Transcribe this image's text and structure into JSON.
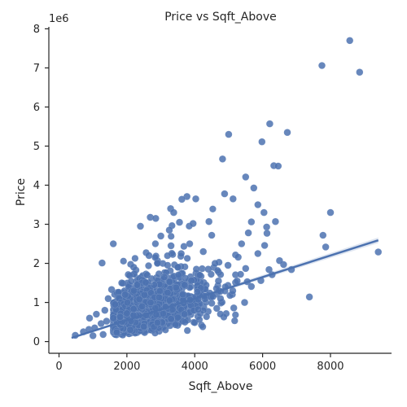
{
  "chart_data": {
    "type": "scatter",
    "title": "Price vs Sqft_Above",
    "xlabel": "Sqft_Above",
    "ylabel": "Price",
    "y_scale_label": "1e6",
    "xlim": [
      -300,
      9800
    ],
    "ylim": [
      -300000,
      8050000
    ],
    "x_ticks": [
      0,
      2000,
      4000,
      6000,
      8000
    ],
    "x_tick_labels": [
      "0",
      "2000",
      "4000",
      "6000",
      "8000"
    ],
    "y_ticks": [
      0,
      1000000,
      2000000,
      3000000,
      4000000,
      5000000,
      6000000,
      7000000,
      8000000
    ],
    "y_tick_labels": [
      "0",
      "1",
      "2",
      "3",
      "4",
      "5",
      "6",
      "7",
      "8"
    ],
    "grid": false,
    "point_color": "#4c72b0",
    "regression_line": {
      "x": [
        370,
        9410
      ],
      "y": [
        95000,
        2590000
      ],
      "color": "#4c72b0"
    },
    "series": [
      {
        "points": [
          [
            8570,
            7700000
          ],
          [
            7750,
            7060000
          ],
          [
            8860,
            6890000
          ],
          [
            6210,
            5570000
          ],
          [
            6730,
            5350000
          ],
          [
            5000,
            5300000
          ],
          [
            5980,
            5110000
          ],
          [
            4820,
            4670000
          ],
          [
            6330,
            4500000
          ],
          [
            6460,
            4490000
          ],
          [
            5500,
            4210000
          ],
          [
            5740,
            3930000
          ],
          [
            5860,
            3500000
          ],
          [
            4030,
            3650000
          ],
          [
            3770,
            3710000
          ],
          [
            4880,
            3780000
          ],
          [
            3620,
            3640000
          ],
          [
            3290,
            3400000
          ],
          [
            2690,
            3180000
          ],
          [
            3380,
            3300000
          ],
          [
            5130,
            3650000
          ],
          [
            5670,
            3060000
          ],
          [
            5580,
            2780000
          ],
          [
            5380,
            2500000
          ],
          [
            6040,
            3300000
          ],
          [
            6380,
            3070000
          ],
          [
            6120,
            2930000
          ],
          [
            6130,
            2770000
          ],
          [
            6060,
            2460000
          ],
          [
            7780,
            2720000
          ],
          [
            7860,
            2420000
          ],
          [
            8000,
            3300000
          ],
          [
            9410,
            2290000
          ],
          [
            6620,
            1970000
          ],
          [
            6850,
            1840000
          ],
          [
            6280,
            1710000
          ],
          [
            6190,
            1840000
          ],
          [
            5950,
            1560000
          ],
          [
            5500,
            1870000
          ],
          [
            5550,
            1530000
          ],
          [
            7380,
            1140000
          ],
          [
            5470,
            1000000
          ],
          [
            5150,
            860000
          ],
          [
            6500,
            2070000
          ],
          [
            5860,
            2250000
          ],
          [
            4420,
            3070000
          ],
          [
            3950,
            3020000
          ],
          [
            4500,
            2720000
          ],
          [
            2080,
            1690000
          ],
          [
            1550,
            1330000
          ],
          [
            1270,
            2010000
          ],
          [
            1600,
            2500000
          ],
          [
            2400,
            2950000
          ],
          [
            4980,
            1950000
          ],
          [
            5280,
            2160000
          ],
          [
            4300,
            1090000
          ],
          [
            5040,
            1180000
          ],
          [
            5670,
            1410000
          ],
          [
            4650,
            850000
          ],
          [
            4760,
            1100000
          ],
          [
            5120,
            1300000
          ],
          [
            480,
            160000
          ],
          [
            720,
            250000
          ],
          [
            880,
            310000
          ],
          [
            1050,
            350000
          ],
          [
            1240,
            460000
          ],
          [
            1400,
            520000
          ],
          [
            1600,
            600000
          ],
          [
            1800,
            630000
          ],
          [
            2000,
            720000
          ],
          [
            2200,
            830000
          ],
          [
            2450,
            900000
          ],
          [
            2700,
            1000000
          ],
          [
            2950,
            1130000
          ],
          [
            3200,
            1250000
          ],
          [
            3450,
            1380000
          ],
          [
            3700,
            1450000
          ],
          [
            3900,
            1560000
          ],
          [
            4150,
            1700000
          ],
          [
            4400,
            1850000
          ],
          [
            4600,
            2000000
          ],
          [
            3600,
            2250000
          ],
          [
            3300,
            2450000
          ],
          [
            2900,
            2000000
          ],
          [
            2600,
            1700000
          ],
          [
            2300,
            1450000
          ],
          [
            1950,
            1200000
          ],
          [
            1650,
            950000
          ],
          [
            1350,
            800000
          ],
          [
            1100,
            700000
          ],
          [
            900,
            600000
          ],
          [
            1000,
            150000
          ],
          [
            1300,
            180000
          ],
          [
            1700,
            230000
          ],
          [
            2100,
            300000
          ],
          [
            2500,
            380000
          ],
          [
            2900,
            480000
          ],
          [
            3300,
            580000
          ],
          [
            3700,
            700000
          ],
          [
            4100,
            820000
          ],
          [
            4500,
            980000
          ],
          [
            3500,
            1900000
          ],
          [
            3100,
            1650000
          ],
          [
            2800,
            1450000
          ],
          [
            3850,
            2500000
          ],
          [
            4250,
            2300000
          ],
          [
            4700,
            1550000
          ],
          [
            4900,
            1400000
          ],
          [
            2650,
            2200000
          ],
          [
            3000,
            2700000
          ],
          [
            3250,
            2850000
          ],
          [
            4050,
            1850000
          ],
          [
            1450,
            1100000
          ],
          [
            1850,
            1500000
          ],
          [
            2200,
            1900000
          ],
          [
            3550,
            3050000
          ],
          [
            2850,
            3150000
          ],
          [
            5250,
            1550000
          ],
          [
            5350,
            1720000
          ]
        ]
      }
    ]
  }
}
